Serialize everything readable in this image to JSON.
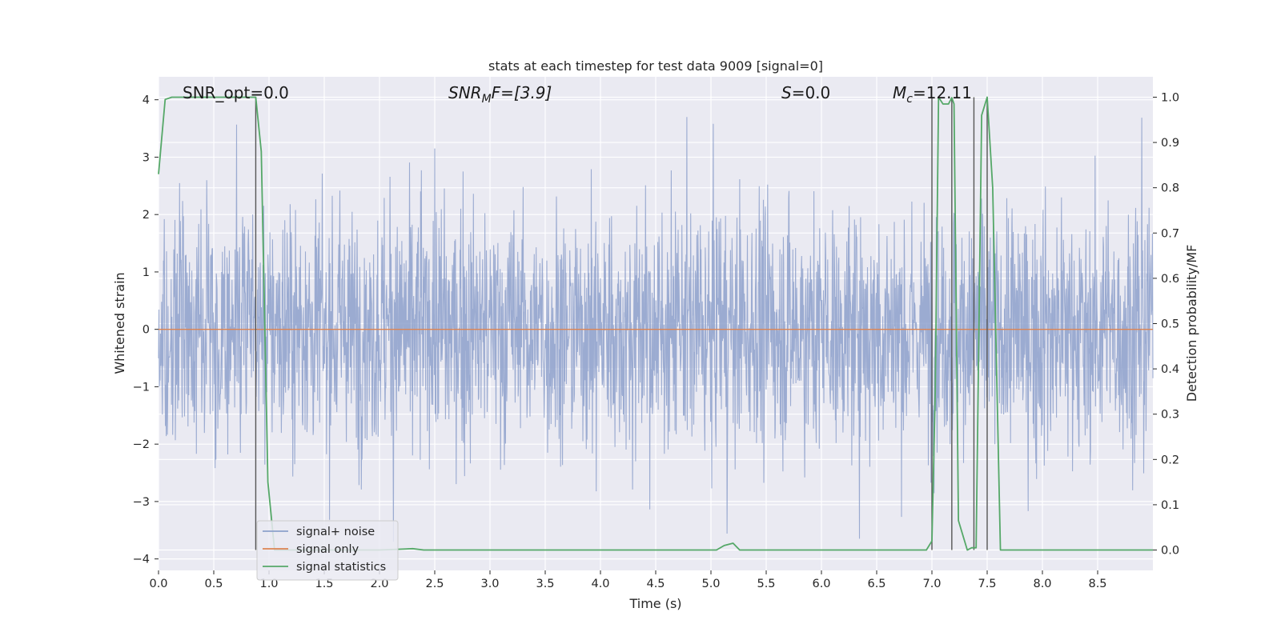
{
  "chart_data": {
    "type": "line",
    "title": "stats at each timestep for test data 9009 [signal=0]",
    "xlabel": "Time (s)",
    "ylabel": "Whitened strain",
    "ylabel_right": "Detection probability/MF",
    "xlim": [
      0.0,
      9.0
    ],
    "ylim": [
      -4.2,
      4.4
    ],
    "ylim_right": [
      -0.045,
      1.045
    ],
    "x_ticks": [
      "0.0",
      "0.5",
      "1.0",
      "1.5",
      "2.0",
      "2.5",
      "3.0",
      "3.5",
      "4.0",
      "4.5",
      "5.0",
      "5.5",
      "6.0",
      "6.5",
      "7.0",
      "7.5",
      "8.0",
      "8.5"
    ],
    "y_ticks": [
      "−4",
      "−3",
      "−2",
      "−1",
      "0",
      "1",
      "2",
      "3",
      "4"
    ],
    "y_ticks_right": [
      "0.0",
      "0.1",
      "0.2",
      "0.3",
      "0.4",
      "0.5",
      "0.6",
      "0.7",
      "0.8",
      "0.9",
      "1.0"
    ],
    "grid": true,
    "legend_position": "lower-left",
    "annotations": {
      "snr_opt": "SNR_opt=0.0",
      "snr_mf_name": "SNR",
      "snr_mf_sub": "M",
      "snr_mf_rest": "F=[3.9]",
      "s_name": "S",
      "s_rest": "=0.0",
      "mc_name": "M",
      "mc_sub": "c",
      "mc_rest": "=12.11"
    },
    "series": [
      {
        "name": "signal+ noise",
        "color": "#8da0cb",
        "description_only": "dense whitened noise, amplitude mostly within ±2.5, extremes ≈ ±3.7"
      },
      {
        "name": "signal only",
        "color": "#dd8452",
        "x": [
          0.0,
          9.0
        ],
        "y": [
          0.0,
          0.0
        ]
      },
      {
        "name": "signal statistics",
        "color": "#55a868",
        "axis": "right",
        "x": [
          0.0,
          0.06,
          0.12,
          0.2,
          0.5,
          0.85,
          0.88,
          0.93,
          0.99,
          1.05,
          1.2,
          1.5,
          2.0,
          2.3,
          2.4,
          3.0,
          4.0,
          5.05,
          5.12,
          5.2,
          5.26,
          5.4,
          6.0,
          6.5,
          6.95,
          7.0,
          7.03,
          7.06,
          7.1,
          7.15,
          7.18,
          7.2,
          7.24,
          7.32,
          7.36,
          7.4,
          7.45,
          7.5,
          7.55,
          7.62,
          7.7,
          8.0,
          8.5,
          9.0
        ],
        "y": [
          0.83,
          0.995,
          1.0,
          1.0,
          1.0,
          1.0,
          1.0,
          0.88,
          0.15,
          0.0,
          0.0,
          0.0,
          0.0,
          0.003,
          0.0,
          0.0,
          0.0,
          0.0,
          0.01,
          0.015,
          0.0,
          0.0,
          0.0,
          0.0,
          0.0,
          0.02,
          0.35,
          1.0,
          0.985,
          0.985,
          0.999,
          0.985,
          0.065,
          0.0,
          0.005,
          0.005,
          0.96,
          1.0,
          0.8,
          0.0,
          0.0,
          0.0,
          0.0,
          0.0
        ]
      }
    ],
    "vertical_lines_x": [
      0.88,
      7.0,
      7.18,
      7.38,
      7.5
    ]
  }
}
